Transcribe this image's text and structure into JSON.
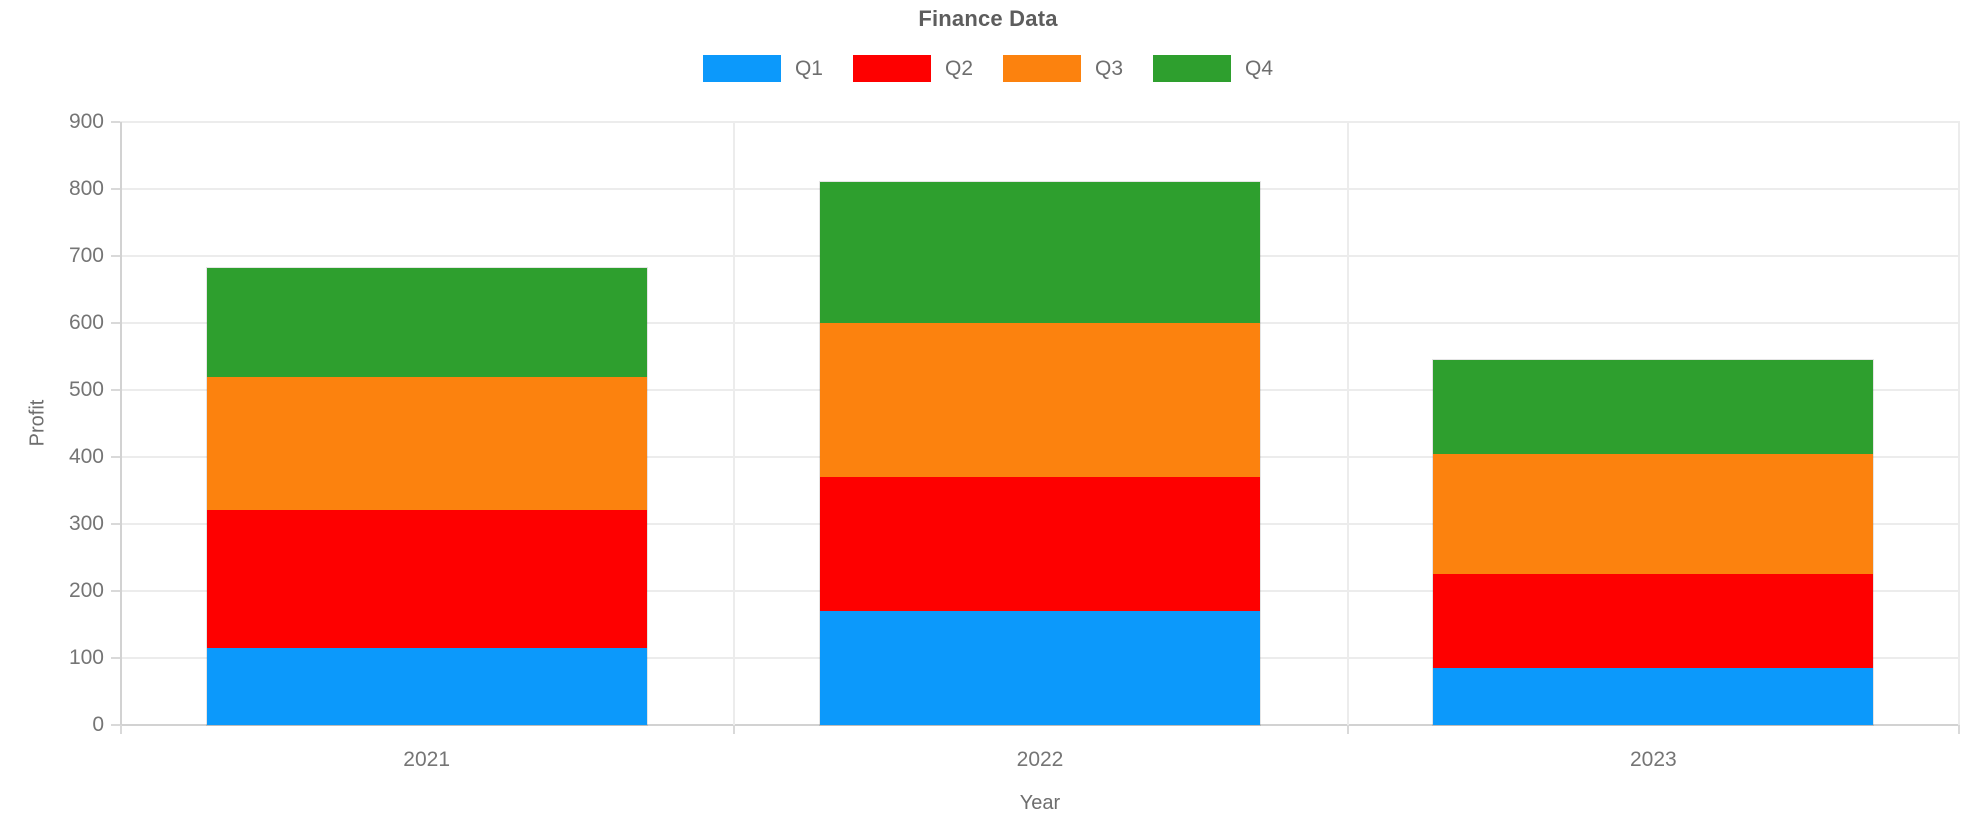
{
  "header": {
    "title": "Finance Data"
  },
  "chart_data": {
    "type": "bar",
    "stacked": true,
    "title": "Finance Data",
    "xlabel": "Year",
    "ylabel": "Profit",
    "categories": [
      "2021",
      "2022",
      "2023"
    ],
    "series": [
      {
        "name": "Q1",
        "color": "#0c99fb",
        "values": [
          115,
          170,
          85
        ]
      },
      {
        "name": "Q2",
        "color": "#fe0000",
        "values": [
          206,
          200,
          140
        ]
      },
      {
        "name": "Q3",
        "color": "#fc820e",
        "values": [
          199,
          230,
          180
        ]
      },
      {
        "name": "Q4",
        "color": "#2e9f2e",
        "values": [
          162,
          210,
          140
        ]
      }
    ],
    "totals": [
      682,
      810,
      545
    ],
    "ylim": [
      0,
      900
    ],
    "ytick_step": 100,
    "yticks": [
      "0",
      "100",
      "200",
      "300",
      "400",
      "500",
      "600",
      "700",
      "800",
      "900"
    ],
    "grid": true,
    "legend_position": "top",
    "legend_labels": [
      "Q1",
      "Q2",
      "Q3",
      "Q4"
    ]
  },
  "colors": {
    "q1_blue": "#0c99fb",
    "q2_red": "#fe0000",
    "q3_orange": "#fc820e",
    "q4_green": "#2e9f2e",
    "grid": "#ececec",
    "axis": "#d2d2d2",
    "text": "#757575",
    "title_text": "#5d5d5d",
    "background": "#ffffff"
  }
}
